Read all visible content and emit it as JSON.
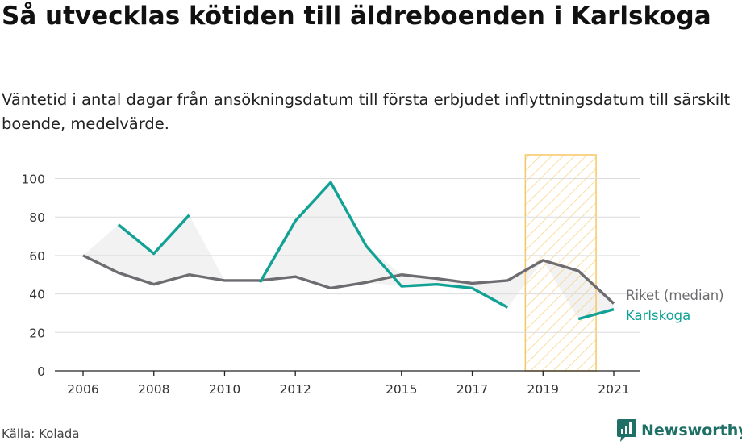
{
  "title": "Så utvecklas kötiden till äldreboenden i Karlskoga",
  "subtitle": "Väntetid i antal dagar från ansökningsdatum till första erbjudet inflyttningsdatum till särskilt boende, medelvärde.",
  "source": "Källa: Kolada",
  "brand": "Newsworthy",
  "colors": {
    "riket": "#6e6c70",
    "karlskoga": "#12a195",
    "band": "#f2f2f2",
    "highlight": "#f5c764"
  },
  "chart_data": {
    "type": "line",
    "x": [
      2006,
      2007,
      2008,
      2009,
      2010,
      2011,
      2012,
      2013,
      2014,
      2015,
      2016,
      2017,
      2018,
      2019,
      2020,
      2021
    ],
    "x_ticks": [
      "2006",
      "2008",
      "2010",
      "2012",
      "2015",
      "2017",
      "2019",
      "2021"
    ],
    "y_ticks": [
      "0",
      "20",
      "40",
      "60",
      "80",
      "100"
    ],
    "ylim": [
      0,
      110
    ],
    "grid": true,
    "highlight_range": [
      2018.5,
      2020.5
    ],
    "series": [
      {
        "name": "Riket (median)",
        "values": [
          60,
          51,
          45,
          50,
          47,
          47,
          49,
          43,
          46,
          50,
          48,
          45.5,
          47,
          57.5,
          52,
          35
        ]
      },
      {
        "name": "Karlskoga",
        "values": [
          null,
          76,
          61,
          81,
          null,
          46,
          78,
          98,
          65,
          44,
          45,
          43,
          33,
          null,
          27,
          32
        ]
      }
    ]
  }
}
